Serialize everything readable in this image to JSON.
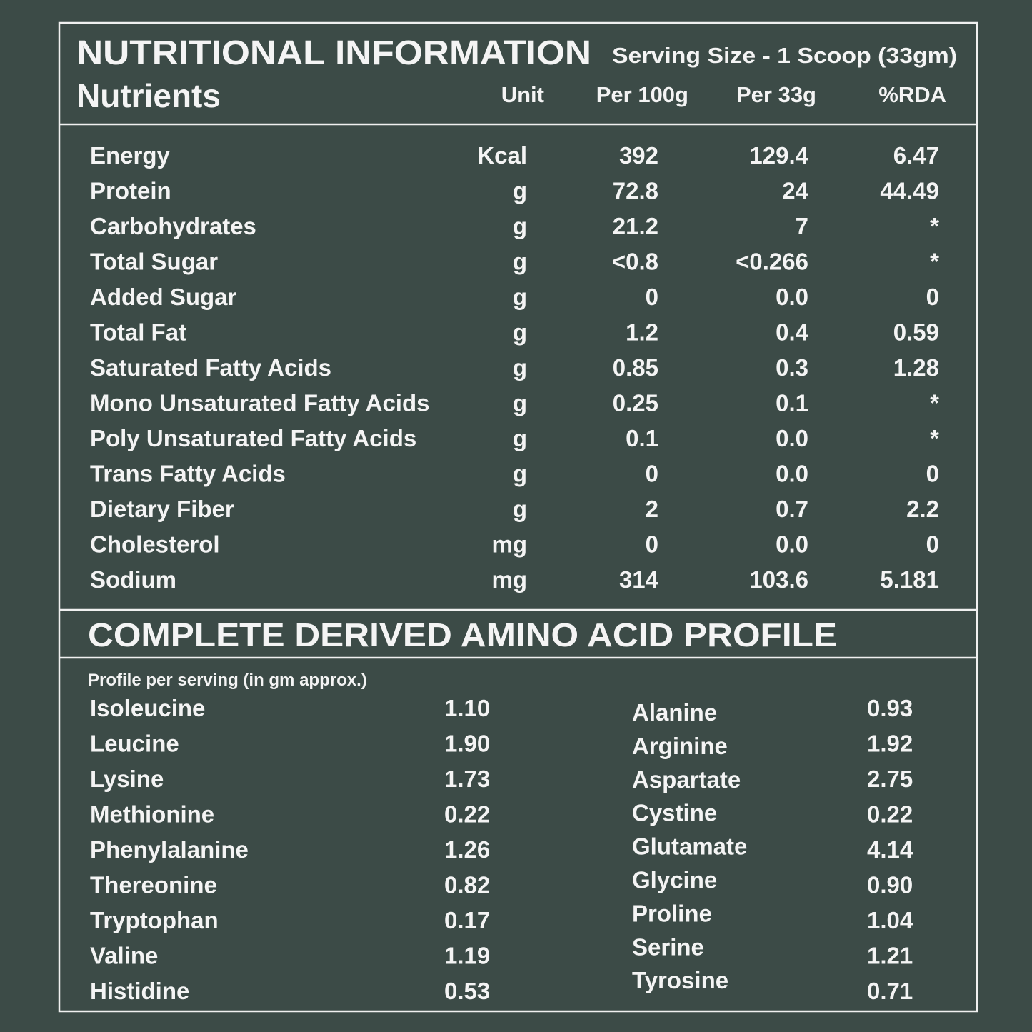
{
  "header": {
    "title": "NUTRITIONAL INFORMATION",
    "serving": "Serving Size - 1 Scoop (33gm)"
  },
  "table": {
    "columns": [
      "Nutrients",
      "Unit",
      "Per 100g",
      "Per 33g",
      "%RDA"
    ],
    "rows": [
      [
        "Energy",
        "Kcal",
        "392",
        "129.4",
        "6.47"
      ],
      [
        "Protein",
        "g",
        "72.8",
        "24",
        "44.49"
      ],
      [
        "Carbohydrates",
        "g",
        "21.2",
        "7",
        "*"
      ],
      [
        "Total Sugar",
        "g",
        "<0.8",
        "<0.266",
        "*"
      ],
      [
        "Added Sugar",
        "g",
        "0",
        "0.0",
        "0"
      ],
      [
        "Total Fat",
        "g",
        "1.2",
        "0.4",
        "0.59"
      ],
      [
        "Saturated Fatty Acids",
        "g",
        "0.85",
        "0.3",
        "1.28"
      ],
      [
        "Mono Unsaturated Fatty Acids",
        "g",
        "0.25",
        "0.1",
        "*"
      ],
      [
        "Poly Unsaturated Fatty Acids",
        "g",
        "0.1",
        "0.0",
        "*"
      ],
      [
        "Trans Fatty Acids",
        "g",
        "0",
        "0.0",
        "0"
      ],
      [
        "Dietary Fiber",
        "g",
        "2",
        "0.7",
        "2.2"
      ],
      [
        "Cholesterol",
        "mg",
        "0",
        "0.0",
        "0"
      ],
      [
        "Sodium",
        "mg",
        "314",
        "103.6",
        "5.181"
      ]
    ]
  },
  "amino": {
    "title": "COMPLETE DERIVED AMINO ACID PROFILE",
    "subtitle": "Profile per serving (in gm approx.)",
    "left": [
      [
        "Isoleucine",
        "1.10"
      ],
      [
        "Leucine",
        "1.90"
      ],
      [
        "Lysine",
        "1.73"
      ],
      [
        "Methionine",
        "0.22"
      ],
      [
        "Phenylalanine",
        "1.26"
      ],
      [
        "Thereonine",
        "0.82"
      ],
      [
        "Tryptophan",
        "0.17"
      ],
      [
        "Valine",
        "1.19"
      ],
      [
        "Histidine",
        "0.53"
      ]
    ],
    "right": [
      [
        "Alanine",
        "0.93"
      ],
      [
        "Arginine",
        "1.92"
      ],
      [
        "Aspartate",
        "2.75"
      ],
      [
        "Cystine",
        "0.22"
      ],
      [
        "Glutamate",
        "4.14"
      ],
      [
        "Glycine",
        "0.90"
      ],
      [
        "Proline",
        "1.04"
      ],
      [
        "Serine",
        "1.21"
      ],
      [
        "Tyrosine",
        "0.71"
      ]
    ]
  }
}
